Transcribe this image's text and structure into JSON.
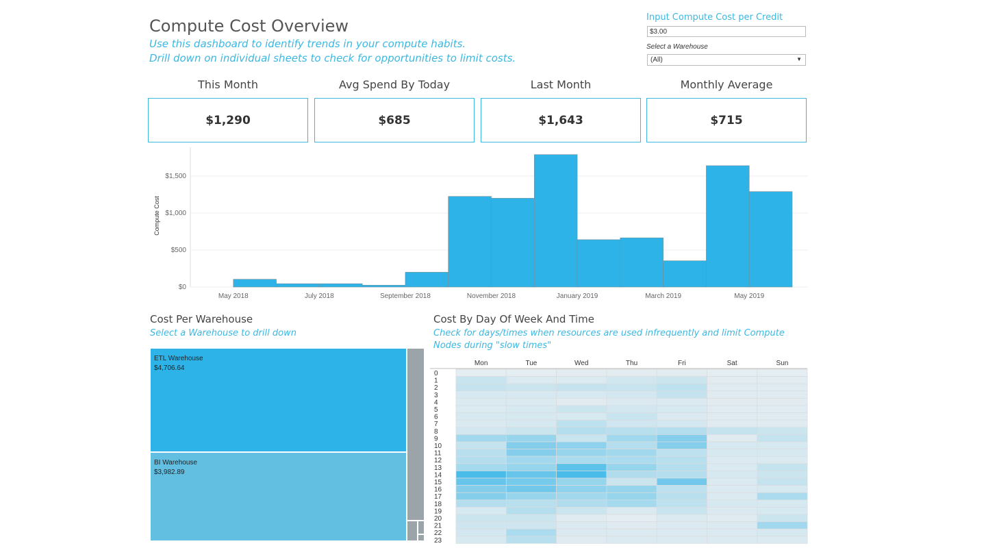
{
  "header": {
    "title": "Compute Cost Overview",
    "subtitle_line1": "Use this dashboard to identify trends in your compute habits.",
    "subtitle_line2": "Drill down on individual sheets to check for opportunities to limit costs."
  },
  "parameters": {
    "cost_label": "Input Compute Cost per Credit",
    "cost_value": "$3.00",
    "warehouse_label": "Select a Warehouse",
    "warehouse_value": "(All)"
  },
  "kpis": [
    {
      "title": "This Month",
      "value": "$1,290"
    },
    {
      "title": "Avg Spend By Today",
      "value": "$685"
    },
    {
      "title": "Last Month",
      "value": "$1,643"
    },
    {
      "title": "Monthly Average",
      "value": "$715"
    }
  ],
  "colors": {
    "accent": "#2db3e8",
    "bar": "#2db3e8",
    "other_warehouse": "#9ba5a9"
  },
  "chart_data": [
    {
      "type": "bar",
      "title": "",
      "ylabel": "Compute Cost",
      "xlabel": "",
      "ylim": [
        0,
        1800
      ],
      "yticks": [
        {
          "v": 0,
          "label": "$0"
        },
        {
          "v": 500,
          "label": "$500"
        },
        {
          "v": 1000,
          "label": "$1,000"
        },
        {
          "v": 1500,
          "label": "$1,500"
        }
      ],
      "categories": [
        "Apr 2018",
        "May 2018",
        "Jun 2018",
        "Jul 2018",
        "Aug 2018",
        "Sep 2018",
        "Oct 2018",
        "Nov 2018",
        "Dec 2018",
        "Jan 2019",
        "Feb 2019",
        "Mar 2019",
        "Apr 2019",
        "May 2019"
      ],
      "values": [
        0,
        105,
        45,
        45,
        25,
        200,
        1225,
        1200,
        1790,
        640,
        665,
        355,
        1640,
        1290
      ],
      "xtick_labels": [
        "May 2018",
        "July 2018",
        "September 2018",
        "November 2018",
        "January 2019",
        "March 2019",
        "May 2019"
      ]
    },
    {
      "type": "heatmap",
      "title": "Cost By Day Of Week And Time",
      "days": [
        "Mon",
        "Tue",
        "Wed",
        "Thu",
        "Fri",
        "Sat",
        "Sun"
      ],
      "hours": [
        "0",
        "1",
        "2",
        "3",
        "4",
        "5",
        "6",
        "7",
        "8",
        "9",
        "10",
        "11",
        "12",
        "13",
        "14",
        "15",
        "16",
        "17",
        "18",
        "19",
        "20",
        "21",
        "22",
        "23"
      ],
      "intensity": [
        [
          0.05,
          0.05,
          0.06,
          0.06,
          0.06,
          0.05,
          0.05
        ],
        [
          0.2,
          0.1,
          0.1,
          0.15,
          0.18,
          0.06,
          0.06
        ],
        [
          0.22,
          0.18,
          0.22,
          0.2,
          0.25,
          0.08,
          0.08
        ],
        [
          0.12,
          0.12,
          0.12,
          0.14,
          0.22,
          0.08,
          0.08
        ],
        [
          0.1,
          0.1,
          0.06,
          0.1,
          0.1,
          0.06,
          0.06
        ],
        [
          0.1,
          0.12,
          0.18,
          0.14,
          0.12,
          0.08,
          0.08
        ],
        [
          0.12,
          0.12,
          0.12,
          0.2,
          0.1,
          0.08,
          0.08
        ],
        [
          0.1,
          0.12,
          0.25,
          0.16,
          0.14,
          0.08,
          0.08
        ],
        [
          0.14,
          0.18,
          0.3,
          0.28,
          0.3,
          0.22,
          0.18
        ],
        [
          0.4,
          0.45,
          0.2,
          0.4,
          0.55,
          0.08,
          0.22
        ],
        [
          0.22,
          0.55,
          0.5,
          0.3,
          0.55,
          0.12,
          0.12
        ],
        [
          0.28,
          0.55,
          0.45,
          0.4,
          0.25,
          0.12,
          0.12
        ],
        [
          0.3,
          0.4,
          0.35,
          0.35,
          0.28,
          0.1,
          0.1
        ],
        [
          0.38,
          0.45,
          0.75,
          0.45,
          0.3,
          0.1,
          0.22
        ],
        [
          0.85,
          0.7,
          0.85,
          0.32,
          0.3,
          0.12,
          0.18
        ],
        [
          0.7,
          0.62,
          0.45,
          0.18,
          0.65,
          0.1,
          0.22
        ],
        [
          0.55,
          0.65,
          0.5,
          0.45,
          0.25,
          0.1,
          0.12
        ],
        [
          0.55,
          0.45,
          0.4,
          0.45,
          0.28,
          0.1,
          0.35
        ],
        [
          0.3,
          0.28,
          0.32,
          0.38,
          0.25,
          0.12,
          0.12
        ],
        [
          0.12,
          0.3,
          0.18,
          0.1,
          0.2,
          0.1,
          0.12
        ],
        [
          0.18,
          0.18,
          0.08,
          0.05,
          0.1,
          0.08,
          0.18
        ],
        [
          0.16,
          0.16,
          0.1,
          0.08,
          0.1,
          0.1,
          0.4
        ],
        [
          0.14,
          0.35,
          0.1,
          0.1,
          0.1,
          0.1,
          0.12
        ],
        [
          0.12,
          0.28,
          0.08,
          0.1,
          0.1,
          0.1,
          0.1
        ]
      ]
    }
  ],
  "cost_per_warehouse": {
    "title": "Cost Per Warehouse",
    "subtitle": "Select a Warehouse to drill down",
    "items": [
      {
        "name": "ETL Warehouse",
        "value": "$4,706.64",
        "color": "#2db3e8"
      },
      {
        "name": "BI Warehouse",
        "value": "$3,982.89",
        "color": "#62bfe2"
      }
    ]
  },
  "cost_by_day": {
    "title": "Cost By Day Of Week And Time",
    "subtitle": "Check for days/times when resources are used infrequently and limit Compute Nodes during \"slow times\""
  }
}
